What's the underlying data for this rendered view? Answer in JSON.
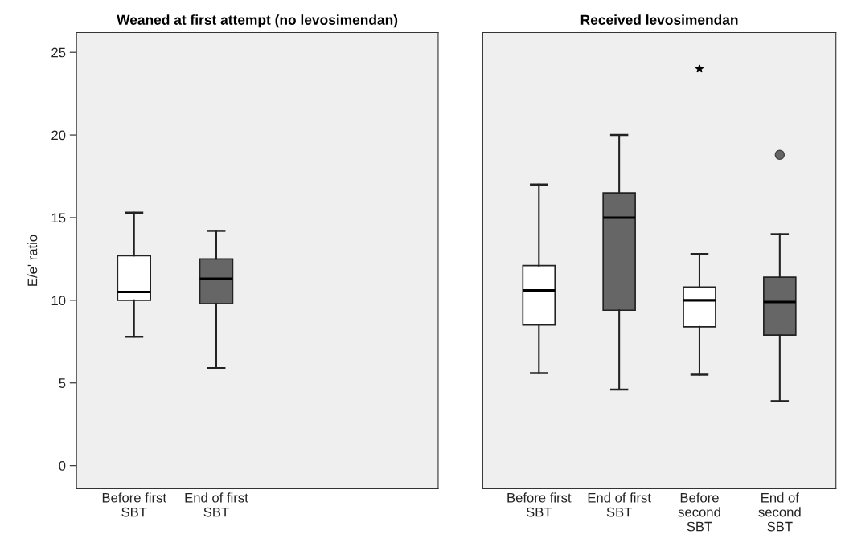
{
  "chart_data": [
    {
      "type": "box",
      "title": "Weaned at first attempt (no levosimendan)",
      "ylabel": "E/e' ratio",
      "categories": [
        "Before first\nSBT",
        "End of first\nSBT"
      ],
      "ylim": [
        -1.4,
        26.2
      ],
      "yticks": [
        0,
        5,
        10,
        15,
        20,
        25
      ],
      "grid": false,
      "legend": false,
      "series": [
        {
          "color": "#ffffff",
          "boxes": [
            {
              "low": 7.8,
              "q1": 10.0,
              "median": 10.5,
              "q3": 12.7,
              "high": 15.3
            },
            null
          ]
        },
        {
          "color": "#666666",
          "boxes": [
            null,
            {
              "low": 5.9,
              "q1": 9.8,
              "median": 11.3,
              "q3": 12.5,
              "high": 14.2
            }
          ]
        }
      ]
    },
    {
      "type": "box",
      "title": "Received levosimendan",
      "categories": [
        "Before first\nSBT",
        "End of first\nSBT",
        "Before\nsecond\nSBT",
        "End of\nsecond\nSBT"
      ],
      "ylim": [
        -1.4,
        26.2
      ],
      "yticks": [
        0,
        5,
        10,
        15,
        20,
        25
      ],
      "tick_labels": "x",
      "grid": false,
      "legend": false,
      "series": [
        {
          "color": "#ffffff",
          "marker": "star",
          "boxes": [
            {
              "low": 5.6,
              "q1": 8.5,
              "median": 10.6,
              "q3": 12.1,
              "high": 17.0
            },
            null,
            {
              "low": 5.5,
              "q1": 8.4,
              "median": 10.0,
              "q3": 10.8,
              "high": 12.8,
              "outliers": [
                24.0
              ]
            },
            null
          ]
        },
        {
          "color": "#666666",
          "marker": "circle",
          "boxes": [
            null,
            {
              "low": 4.6,
              "q1": 9.4,
              "median": 15.0,
              "q3": 16.5,
              "high": 20.0
            },
            null,
            {
              "low": 3.9,
              "q1": 7.9,
              "median": 9.9,
              "q3": 11.4,
              "high": 14.0,
              "outliers": [
                18.8
              ]
            }
          ]
        }
      ]
    }
  ]
}
